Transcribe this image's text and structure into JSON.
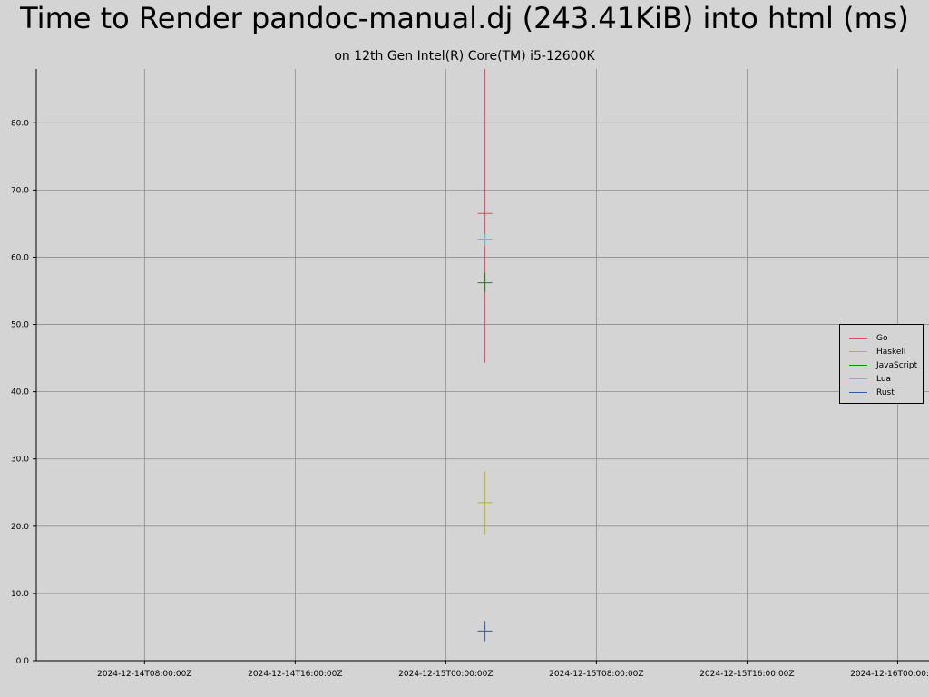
{
  "chart_data": {
    "type": "scatter",
    "title": "Time to Render pandoc-manual.dj (243.41KiB) into html (ms)",
    "subtitle": "on 12th Gen Intel(R) Core(TM) i5-12600K",
    "xlabel": "",
    "ylabel": "",
    "x_ticks": [
      "2024-12-14T08:00:00Z",
      "2024-12-14T16:00:00Z",
      "2024-12-15T00:00:00Z",
      "2024-12-15T08:00:00Z",
      "2024-12-15T16:00:00Z",
      "2024-12-16T00:00:00Z"
    ],
    "y_ticks": [
      "0.0",
      "10.0",
      "20.0",
      "30.0",
      "40.0",
      "50.0",
      "60.0",
      "70.0",
      "80.0"
    ],
    "xlim": [
      "2024-12-14T02:15:00Z",
      "2024-12-16T01:40:00Z"
    ],
    "ylim": [
      0,
      88
    ],
    "grid": true,
    "legend_position": "right",
    "error_bars": true,
    "series": [
      {
        "name": "Go",
        "color": "#e8485a",
        "x": "2024-12-15T02:05:00Z",
        "y": 66.5,
        "low": 44.3,
        "high": 88
      },
      {
        "name": "Haskell",
        "color": "#b8b818",
        "x": "2024-12-15T02:05:00Z",
        "y": 23.5,
        "low": 18.8,
        "high": 28.2
      },
      {
        "name": "JavaScript",
        "color": "#108c10",
        "x": "2024-12-15T02:05:00Z",
        "y": 56.2,
        "low": 54.8,
        "high": 57.7
      },
      {
        "name": "Lua",
        "color": "#4cc8e0",
        "x": "2024-12-15T02:05:00Z",
        "y": 62.7,
        "low": 61.7,
        "high": 63.5
      },
      {
        "name": "Rust",
        "color": "#2c5ca8",
        "x": "2024-12-15T02:05:00Z",
        "y": 4.4,
        "low": 2.9,
        "high": 5.9
      }
    ]
  }
}
